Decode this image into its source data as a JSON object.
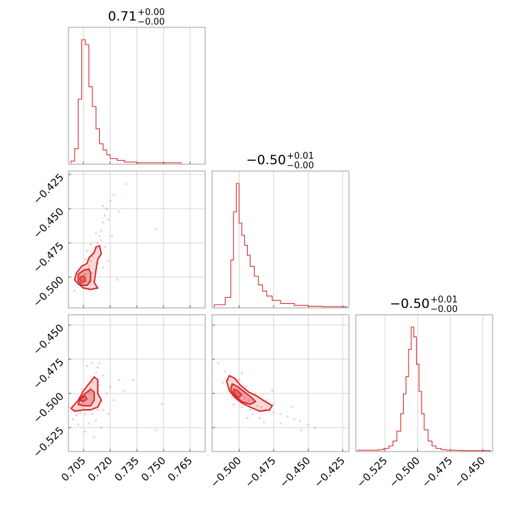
{
  "chart_data": {
    "type": "corner",
    "color": "#d62728",
    "grid": true,
    "parameters": [
      {
        "title_value": "0.71",
        "title_plus": "+0.00",
        "title_minus": "−0.00"
      },
      {
        "title_value": "−0.50",
        "title_plus": "+0.01",
        "title_minus": "−0.00"
      },
      {
        "title_value": "−0.50",
        "title_plus": "+0.01",
        "title_minus": "−0.00"
      }
    ],
    "histograms": [
      {
        "name": "param0",
        "x_range": [
          0.6965,
          0.7735
        ],
        "bins": [
          0.698,
          0.7,
          0.702,
          0.704,
          0.706,
          0.708,
          0.71,
          0.712,
          0.714,
          0.716,
          0.718,
          0.72,
          0.724,
          0.728,
          0.735,
          0.76
        ],
        "counts": [
          0.02,
          0.12,
          0.52,
          1.0,
          0.96,
          0.62,
          0.46,
          0.28,
          0.16,
          0.11,
          0.07,
          0.04,
          0.025,
          0.012,
          0.006,
          0.0
        ],
        "ticks": [
          0.705,
          0.72,
          0.735,
          0.75,
          0.765
        ],
        "tick_labels": [
          "0.705",
          "0.720",
          "0.735",
          "0.750",
          "0.765"
        ]
      },
      {
        "name": "param1",
        "x_range": [
          -0.5195,
          -0.4205
        ],
        "bins": [
          -0.518,
          -0.51,
          -0.506,
          -0.504,
          -0.502,
          -0.5,
          -0.498,
          -0.496,
          -0.494,
          -0.492,
          -0.489,
          -0.486,
          -0.483,
          -0.48,
          -0.476,
          -0.47,
          -0.46,
          -0.45,
          -0.44,
          -0.422
        ],
        "counts": [
          0.02,
          0.08,
          0.38,
          0.77,
          1.0,
          0.68,
          0.58,
          0.5,
          0.42,
          0.33,
          0.25,
          0.18,
          0.13,
          0.09,
          0.055,
          0.03,
          0.015,
          0.008,
          0.004,
          0.0
        ],
        "ticks": [
          -0.5,
          -0.475,
          -0.45,
          -0.425
        ],
        "tick_labels": [
          "−0.500",
          "−0.475",
          "−0.450",
          "−0.425"
        ]
      },
      {
        "name": "param2",
        "x_range": [
          -0.5475,
          -0.4425
        ],
        "bins": [
          -0.546,
          -0.53,
          -0.526,
          -0.522,
          -0.519,
          -0.516,
          -0.513,
          -0.511,
          -0.509,
          -0.507,
          -0.505,
          -0.503,
          -0.501,
          -0.499,
          -0.497,
          -0.495,
          -0.492,
          -0.489,
          -0.486,
          -0.482,
          -0.478,
          -0.472,
          -0.466,
          -0.444
        ],
        "counts": [
          0.005,
          0.01,
          0.02,
          0.04,
          0.08,
          0.16,
          0.3,
          0.46,
          0.6,
          0.82,
          1.0,
          0.92,
          0.7,
          0.48,
          0.3,
          0.17,
          0.08,
          0.04,
          0.02,
          0.01,
          0.006,
          0.004,
          0.002,
          0.0
        ],
        "ticks": [
          -0.525,
          -0.5,
          -0.475,
          -0.45
        ],
        "tick_labels": [
          "−0.525",
          "−0.500",
          "−0.475",
          "−0.450"
        ]
      }
    ],
    "row_axes": [
      null,
      {
        "y_range": [
          -0.5225,
          -0.4225
        ],
        "ticks": [
          -0.425,
          -0.45,
          -0.475,
          -0.5
        ],
        "tick_labels": [
          "−0.425",
          "−0.450",
          "−0.475",
          "−0.500"
        ]
      },
      {
        "y_range": [
          -0.5425,
          -0.4425
        ],
        "ticks": [
          -0.45,
          -0.475,
          -0.5,
          -0.525
        ],
        "tick_labels": [
          "−0.450",
          "−0.475",
          "−0.500",
          "−0.525"
        ]
      }
    ],
    "scatter_2d": [
      {
        "x_param": 0,
        "y_param": 1,
        "center": [
          0.7045,
          -0.5005
        ],
        "points": [
          [
            0.702,
            -0.505
          ],
          [
            0.704,
            -0.502
          ],
          [
            0.706,
            -0.498
          ],
          [
            0.707,
            -0.495
          ],
          [
            0.708,
            -0.492
          ],
          [
            0.709,
            -0.488
          ],
          [
            0.71,
            -0.485
          ],
          [
            0.711,
            -0.482
          ],
          [
            0.712,
            -0.479
          ],
          [
            0.713,
            -0.475
          ],
          [
            0.714,
            -0.47
          ],
          [
            0.715,
            -0.466
          ],
          [
            0.716,
            -0.46
          ],
          [
            0.717,
            -0.455
          ],
          [
            0.718,
            -0.45
          ],
          [
            0.716,
            -0.448
          ],
          [
            0.72,
            -0.444
          ],
          [
            0.722,
            -0.44
          ],
          [
            0.715,
            -0.473
          ],
          [
            0.713,
            -0.49
          ],
          [
            0.71,
            -0.497
          ],
          [
            0.708,
            -0.503
          ],
          [
            0.703,
            -0.497
          ],
          [
            0.706,
            -0.487
          ],
          [
            0.712,
            -0.468
          ],
          [
            0.719,
            -0.458
          ],
          [
            0.721,
            -0.47
          ],
          [
            0.725,
            -0.452
          ],
          [
            0.729,
            -0.432
          ],
          [
            0.724,
            -0.502
          ],
          [
            0.746,
            -0.465
          ],
          [
            0.7,
            -0.51
          ],
          [
            0.705,
            -0.508
          ],
          [
            0.711,
            -0.503
          ],
          [
            0.714,
            -0.485
          ],
          [
            0.717,
            -0.478
          ],
          [
            0.719,
            -0.488
          ],
          [
            0.709,
            -0.476
          ],
          [
            0.716,
            -0.493
          ],
          [
            0.707,
            -0.481
          ]
        ],
        "level_outer": [
          [
            0.701,
            -0.497
          ],
          [
            0.704,
            -0.492
          ],
          [
            0.707,
            -0.49
          ],
          [
            0.708,
            -0.486
          ],
          [
            0.711,
            -0.482
          ],
          [
            0.712,
            -0.478
          ],
          [
            0.714,
            -0.477
          ],
          [
            0.715,
            -0.483
          ],
          [
            0.713,
            -0.487
          ],
          [
            0.712,
            -0.495
          ],
          [
            0.711,
            -0.504
          ],
          [
            0.713,
            -0.508
          ],
          [
            0.709,
            -0.509
          ],
          [
            0.705,
            -0.508
          ],
          [
            0.702,
            -0.505
          ],
          [
            0.7,
            -0.502
          ]
        ],
        "level_inner": [
          [
            0.702,
            -0.498
          ],
          [
            0.705,
            -0.495
          ],
          [
            0.708,
            -0.494
          ],
          [
            0.709,
            -0.497
          ],
          [
            0.709,
            -0.503
          ],
          [
            0.707,
            -0.506
          ],
          [
            0.704,
            -0.506
          ],
          [
            0.702,
            -0.503
          ]
        ],
        "level_core": [
          [
            0.703,
            -0.5
          ],
          [
            0.705,
            -0.499
          ],
          [
            0.706,
            -0.501
          ],
          [
            0.706,
            -0.503
          ],
          [
            0.704,
            -0.504
          ],
          [
            0.703,
            -0.502
          ]
        ]
      },
      {
        "x_param": 0,
        "y_param": 2,
        "center": [
          0.7045,
          -0.5015
        ],
        "points": [
          [
            0.7,
            -0.512
          ],
          [
            0.702,
            -0.508
          ],
          [
            0.704,
            -0.505
          ],
          [
            0.706,
            -0.502
          ],
          [
            0.708,
            -0.499
          ],
          [
            0.709,
            -0.496
          ],
          [
            0.71,
            -0.492
          ],
          [
            0.711,
            -0.488
          ],
          [
            0.712,
            -0.485
          ],
          [
            0.713,
            -0.481
          ],
          [
            0.714,
            -0.478
          ],
          [
            0.715,
            -0.505
          ],
          [
            0.713,
            -0.512
          ],
          [
            0.71,
            -0.515
          ],
          [
            0.706,
            -0.515
          ],
          [
            0.703,
            -0.514
          ],
          [
            0.699,
            -0.519
          ],
          [
            0.702,
            -0.523
          ],
          [
            0.708,
            -0.522
          ],
          [
            0.712,
            -0.52
          ],
          [
            0.716,
            -0.512
          ],
          [
            0.718,
            -0.5
          ],
          [
            0.72,
            -0.495
          ],
          [
            0.722,
            -0.505
          ],
          [
            0.725,
            -0.49
          ],
          [
            0.728,
            -0.498
          ],
          [
            0.733,
            -0.49
          ],
          [
            0.749,
            -0.508
          ],
          [
            0.746,
            -0.527
          ],
          [
            0.706,
            -0.528
          ],
          [
            0.711,
            -0.532
          ],
          [
            0.715,
            -0.525
          ],
          [
            0.719,
            -0.515
          ],
          [
            0.707,
            -0.48
          ],
          [
            0.71,
            -0.478
          ],
          [
            0.716,
            -0.487
          ],
          [
            0.704,
            -0.497
          ],
          [
            0.701,
            -0.516
          ],
          [
            0.697,
            -0.51
          ],
          [
            0.714,
            -0.494
          ]
        ],
        "level_outer": [
          [
            0.702,
            -0.505
          ],
          [
            0.705,
            -0.498
          ],
          [
            0.708,
            -0.493
          ],
          [
            0.711,
            -0.488
          ],
          [
            0.713,
            -0.49
          ],
          [
            0.713,
            -0.5
          ],
          [
            0.715,
            -0.505
          ],
          [
            0.713,
            -0.51
          ],
          [
            0.709,
            -0.512
          ],
          [
            0.705,
            -0.512
          ],
          [
            0.7,
            -0.513
          ],
          [
            0.698,
            -0.511
          ]
        ],
        "level_inner": [
          [
            0.703,
            -0.504
          ],
          [
            0.706,
            -0.5
          ],
          [
            0.709,
            -0.497
          ],
          [
            0.711,
            -0.499
          ],
          [
            0.711,
            -0.505
          ],
          [
            0.709,
            -0.509
          ],
          [
            0.705,
            -0.509
          ],
          [
            0.702,
            -0.508
          ]
        ],
        "level_core": [
          [
            0.704,
            -0.503
          ],
          [
            0.706,
            -0.502
          ],
          [
            0.707,
            -0.504
          ],
          [
            0.705,
            -0.506
          ],
          [
            0.703,
            -0.505
          ]
        ]
      },
      {
        "x_param": 1,
        "y_param": 2,
        "center": [
          -0.5015,
          -0.4995
        ],
        "points": [
          [
            -0.508,
            -0.49
          ],
          [
            -0.505,
            -0.494
          ],
          [
            -0.502,
            -0.497
          ],
          [
            -0.499,
            -0.5
          ],
          [
            -0.496,
            -0.503
          ],
          [
            -0.493,
            -0.505
          ],
          [
            -0.49,
            -0.507
          ],
          [
            -0.487,
            -0.509
          ],
          [
            -0.484,
            -0.51
          ],
          [
            -0.481,
            -0.512
          ],
          [
            -0.478,
            -0.513
          ],
          [
            -0.475,
            -0.514
          ],
          [
            -0.47,
            -0.515
          ],
          [
            -0.465,
            -0.517
          ],
          [
            -0.46,
            -0.519
          ],
          [
            -0.456,
            -0.52
          ],
          [
            -0.45,
            -0.523
          ],
          [
            -0.445,
            -0.525
          ],
          [
            -0.5,
            -0.49
          ],
          [
            -0.495,
            -0.495
          ],
          [
            -0.505,
            -0.503
          ],
          [
            -0.498,
            -0.51
          ],
          [
            -0.49,
            -0.515
          ],
          [
            -0.485,
            -0.518
          ],
          [
            -0.48,
            -0.505
          ],
          [
            -0.475,
            -0.508
          ],
          [
            -0.51,
            -0.484
          ],
          [
            -0.515,
            -0.478
          ],
          [
            -0.512,
            -0.492
          ],
          [
            -0.498,
            -0.485
          ],
          [
            -0.488,
            -0.5
          ],
          [
            -0.47,
            -0.522
          ],
          [
            -0.462,
            -0.51
          ],
          [
            -0.455,
            -0.527
          ],
          [
            -0.504,
            -0.508
          ],
          [
            -0.494,
            -0.518
          ],
          [
            -0.482,
            -0.521
          ],
          [
            -0.476,
            -0.498
          ],
          [
            -0.506,
            -0.496
          ],
          [
            -0.492,
            -0.512
          ]
        ],
        "level_outer": [
          [
            -0.507,
            -0.487
          ],
          [
            -0.503,
            -0.489
          ],
          [
            -0.499,
            -0.494
          ],
          [
            -0.493,
            -0.499
          ],
          [
            -0.487,
            -0.502
          ],
          [
            -0.481,
            -0.506
          ],
          [
            -0.476,
            -0.509
          ],
          [
            -0.478,
            -0.512
          ],
          [
            -0.485,
            -0.513
          ],
          [
            -0.492,
            -0.51
          ],
          [
            -0.498,
            -0.507
          ],
          [
            -0.503,
            -0.503
          ],
          [
            -0.507,
            -0.498
          ],
          [
            -0.509,
            -0.491
          ]
        ],
        "level_inner": [
          [
            -0.505,
            -0.493
          ],
          [
            -0.501,
            -0.495
          ],
          [
            -0.496,
            -0.499
          ],
          [
            -0.491,
            -0.503
          ],
          [
            -0.488,
            -0.506
          ],
          [
            -0.492,
            -0.508
          ],
          [
            -0.498,
            -0.506
          ],
          [
            -0.503,
            -0.502
          ],
          [
            -0.506,
            -0.497
          ]
        ],
        "level_core": [
          [
            -0.504,
            -0.497
          ],
          [
            -0.501,
            -0.498
          ],
          [
            -0.498,
            -0.501
          ],
          [
            -0.5,
            -0.503
          ],
          [
            -0.503,
            -0.501
          ]
        ]
      }
    ]
  }
}
